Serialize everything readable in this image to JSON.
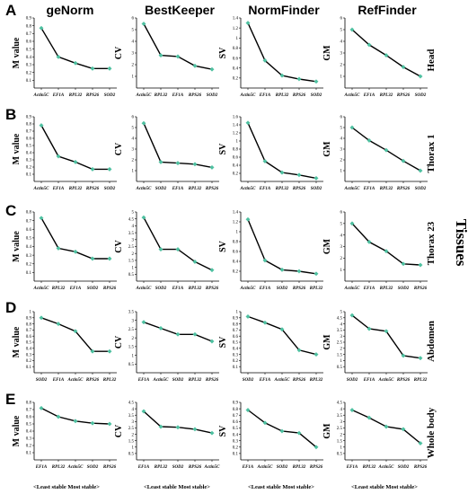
{
  "columns": [
    "geNorm",
    "BestKeeper",
    "NormFinder",
    "RefFinder"
  ],
  "row_letters": [
    "A",
    "B",
    "C",
    "D",
    "E"
  ],
  "row_labels": [
    "Head",
    "Thorax 1",
    "Thorax 23",
    "Abdomen",
    "Whole body"
  ],
  "side_label": "Tissues",
  "footer_label": "<Least stable Most stable>",
  "colors": {
    "line": "#000000",
    "marker": "#4dc0a0",
    "axis": "#000000"
  },
  "chart_data": [
    {
      "type": "line",
      "method": "geNorm",
      "tissue": "Head",
      "ylabel": "M value",
      "categories": [
        "Actin5C",
        "EF1A",
        "RPL32",
        "RPS26",
        "SOD2"
      ],
      "values": [
        0.77,
        0.4,
        0.32,
        0.25,
        0.25
      ],
      "ylim": [
        0,
        0.9
      ],
      "yticks": [
        0.1,
        0.2,
        0.3,
        0.4,
        0.5,
        0.6,
        0.7,
        0.8,
        0.9
      ]
    },
    {
      "type": "line",
      "method": "BestKeeper",
      "tissue": "Head",
      "ylabel": "CV",
      "categories": [
        "Actin5C",
        "RPL32",
        "EF1A",
        "RPS26",
        "SOD2"
      ],
      "values": [
        5.5,
        2.8,
        2.7,
        1.9,
        1.6
      ],
      "ylim": [
        0,
        6
      ],
      "yticks": [
        1,
        2,
        3,
        4,
        5,
        6
      ]
    },
    {
      "type": "line",
      "method": "NormFinder",
      "tissue": "Head",
      "ylabel": "SV",
      "categories": [
        "Actin5C",
        "EF1A",
        "RPL32",
        "RPS26",
        "SOD2"
      ],
      "values": [
        1.3,
        0.55,
        0.25,
        0.18,
        0.13
      ],
      "ylim": [
        0,
        1.4
      ],
      "yticks": [
        0.2,
        0.4,
        0.6,
        0.8,
        1,
        1.2,
        1.4
      ]
    },
    {
      "type": "line",
      "method": "RefFinder",
      "tissue": "Head",
      "ylabel": "GM",
      "categories": [
        "Actin5C",
        "EF1A",
        "RPL32",
        "RPS26",
        "SOD2"
      ],
      "values": [
        5,
        3.7,
        2.8,
        1.8,
        1
      ],
      "ylim": [
        0,
        6
      ],
      "yticks": [
        1,
        2,
        3,
        4,
        5,
        6
      ]
    },
    {
      "type": "line",
      "method": "geNorm",
      "tissue": "Thorax 1",
      "ylabel": "M value",
      "categories": [
        "Actin5C",
        "EF1A",
        "RPL32",
        "RPS26",
        "SOD2"
      ],
      "values": [
        0.78,
        0.35,
        0.27,
        0.17,
        0.17
      ],
      "ylim": [
        0,
        0.9
      ],
      "yticks": [
        0.1,
        0.2,
        0.3,
        0.4,
        0.5,
        0.6,
        0.7,
        0.8,
        0.9
      ]
    },
    {
      "type": "line",
      "method": "BestKeeper",
      "tissue": "Thorax 1",
      "ylabel": "CV",
      "categories": [
        "Actin5C",
        "SOD2",
        "EF1A",
        "RPL32",
        "RPS26"
      ],
      "values": [
        5.4,
        1.8,
        1.7,
        1.6,
        1.3
      ],
      "ylim": [
        0,
        6
      ],
      "yticks": [
        1,
        2,
        3,
        4,
        5,
        6
      ]
    },
    {
      "type": "line",
      "method": "NormFinder",
      "tissue": "Thorax 1",
      "ylabel": "SV",
      "categories": [
        "Actin5C",
        "EF1A",
        "RPL32",
        "RPS26",
        "SOD2"
      ],
      "values": [
        1.45,
        0.5,
        0.22,
        0.16,
        0.08
      ],
      "ylim": [
        0,
        1.6
      ],
      "yticks": [
        0.2,
        0.4,
        0.6,
        0.8,
        1,
        1.2,
        1.4,
        1.6
      ]
    },
    {
      "type": "line",
      "method": "RefFinder",
      "tissue": "Thorax 1",
      "ylabel": "GM",
      "categories": [
        "Actin5C",
        "EF1A",
        "RPL32",
        "RPS26",
        "SOD2"
      ],
      "values": [
        5,
        3.8,
        2.9,
        1.9,
        1
      ],
      "ylim": [
        0,
        6
      ],
      "yticks": [
        1,
        2,
        3,
        4,
        5,
        6
      ]
    },
    {
      "type": "line",
      "method": "geNorm",
      "tissue": "Thorax 23",
      "ylabel": "M value",
      "categories": [
        "Actin5C",
        "RPL32",
        "EF1A",
        "SOD2",
        "RPS26"
      ],
      "values": [
        0.73,
        0.38,
        0.34,
        0.26,
        0.26
      ],
      "ylim": [
        0,
        0.8
      ],
      "yticks": [
        0.1,
        0.2,
        0.3,
        0.4,
        0.5,
        0.6,
        0.7,
        0.8
      ]
    },
    {
      "type": "line",
      "method": "BestKeeper",
      "tissue": "Thorax 23",
      "ylabel": "CV",
      "categories": [
        "Actin5C",
        "SOD2",
        "EF1A",
        "RPL32",
        "RPS26"
      ],
      "values": [
        4.6,
        2.3,
        2.3,
        1.4,
        0.8
      ],
      "ylim": [
        0,
        5
      ],
      "yticks": [
        0.5,
        1,
        1.5,
        2,
        2.5,
        3,
        3.5,
        4,
        4.5,
        5
      ]
    },
    {
      "type": "line",
      "method": "NormFinder",
      "tissue": "Thorax 23",
      "ylabel": "SV",
      "categories": [
        "Actin5C",
        "EF1A",
        "SOD2",
        "RPS26",
        "RPL32"
      ],
      "values": [
        1.25,
        0.42,
        0.23,
        0.2,
        0.15
      ],
      "ylim": [
        0,
        1.4
      ],
      "yticks": [
        0.2,
        0.4,
        0.6,
        0.8,
        1,
        1.2,
        1.4
      ]
    },
    {
      "type": "line",
      "method": "RefFinder",
      "tissue": "Thorax 23",
      "ylabel": "GM",
      "categories": [
        "Actin5C",
        "EF1A",
        "RPL32",
        "SOD2",
        "RPS26"
      ],
      "values": [
        5,
        3.4,
        2.6,
        1.5,
        1.4
      ],
      "ylim": [
        0,
        6
      ],
      "yticks": [
        1,
        2,
        3,
        4,
        5,
        6
      ]
    },
    {
      "type": "line",
      "method": "geNorm",
      "tissue": "Abdomen",
      "ylabel": "M value",
      "categories": [
        "SOD2",
        "EF1A",
        "Actin5C",
        "RPS26",
        "RPL32"
      ],
      "values": [
        0.9,
        0.8,
        0.68,
        0.35,
        0.35
      ],
      "ylim": [
        0,
        1
      ],
      "yticks": [
        0.1,
        0.2,
        0.3,
        0.4,
        0.5,
        0.6,
        0.7,
        0.8,
        0.9,
        1
      ]
    },
    {
      "type": "line",
      "method": "BestKeeper",
      "tissue": "Abdomen",
      "ylabel": "CV",
      "categories": [
        "EF1A",
        "Actin5C",
        "SOD2",
        "RPL32",
        "RPS26"
      ],
      "values": [
        2.9,
        2.55,
        2.2,
        2.2,
        1.8
      ],
      "ylim": [
        0,
        3.5
      ],
      "yticks": [
        0.5,
        1,
        1.5,
        2,
        2.5,
        3,
        3.5
      ]
    },
    {
      "type": "line",
      "method": "NormFinder",
      "tissue": "Abdomen",
      "ylabel": "SV",
      "categories": [
        "SOD2",
        "EF1A",
        "Actin5C",
        "RPS26",
        "RPL32"
      ],
      "values": [
        0.92,
        0.82,
        0.71,
        0.37,
        0.3
      ],
      "ylim": [
        0,
        1
      ],
      "yticks": [
        0.1,
        0.2,
        0.3,
        0.4,
        0.5,
        0.6,
        0.7,
        0.8,
        0.9,
        1
      ]
    },
    {
      "type": "line",
      "method": "RefFinder",
      "tissue": "Abdomen",
      "ylabel": "GM",
      "categories": [
        "SOD2",
        "EF1A",
        "Actin5C",
        "RPS26",
        "RPL32"
      ],
      "values": [
        4.7,
        3.6,
        3.4,
        1.4,
        1.2
      ],
      "ylim": [
        0,
        5
      ],
      "yticks": [
        0.5,
        1,
        1.5,
        2,
        2.5,
        3,
        3.5,
        4,
        4.5,
        5
      ]
    },
    {
      "type": "line",
      "method": "geNorm",
      "tissue": "Whole body",
      "ylabel": "M value",
      "categories": [
        "EF1A",
        "RPL32",
        "Actin5C",
        "SOD2",
        "RPS26"
      ],
      "values": [
        0.72,
        0.6,
        0.54,
        0.51,
        0.5
      ],
      "ylim": [
        0,
        0.8
      ],
      "yticks": [
        0.1,
        0.2,
        0.3,
        0.4,
        0.5,
        0.6,
        0.7,
        0.8
      ]
    },
    {
      "type": "line",
      "method": "BestKeeper",
      "tissue": "Whole body",
      "ylabel": "CV",
      "categories": [
        "EF1A",
        "RPL32",
        "SOD2",
        "RPS26",
        "Actin5C"
      ],
      "values": [
        3.8,
        2.6,
        2.55,
        2.4,
        2.1
      ],
      "ylim": [
        0,
        4.5
      ],
      "yticks": [
        0.5,
        1,
        1.5,
        2,
        2.5,
        3,
        3.5,
        4,
        4.5
      ]
    },
    {
      "type": "line",
      "method": "NormFinder",
      "tissue": "Whole body",
      "ylabel": "SV",
      "categories": [
        "EF1A",
        "Actin5C",
        "SOD2",
        "RPL32",
        "RPS26"
      ],
      "values": [
        0.78,
        0.58,
        0.45,
        0.42,
        0.2
      ],
      "ylim": [
        0,
        0.9
      ],
      "yticks": [
        0.1,
        0.2,
        0.3,
        0.4,
        0.5,
        0.6,
        0.7,
        0.8,
        0.9
      ]
    },
    {
      "type": "line",
      "method": "RefFinder",
      "tissue": "Whole body",
      "ylabel": "GM",
      "categories": [
        "EF1A",
        "RPL32",
        "Actin5C",
        "SOD2",
        "RPS26"
      ],
      "values": [
        3.9,
        3.3,
        2.6,
        2.4,
        1.3
      ],
      "ylim": [
        0,
        4.5
      ],
      "yticks": [
        0.5,
        1,
        1.5,
        2,
        2.5,
        3,
        3.5,
        4,
        4.5
      ]
    }
  ]
}
